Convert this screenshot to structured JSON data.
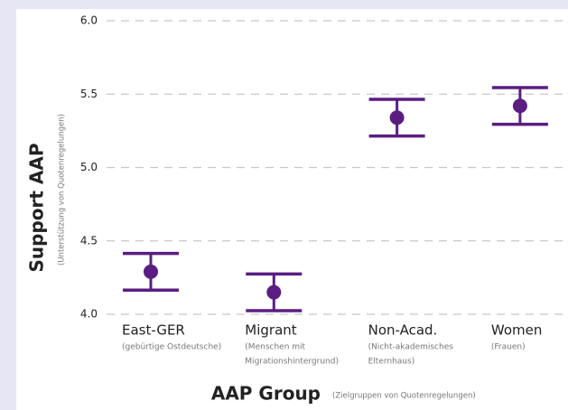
{
  "chart_data": {
    "type": "pointrange",
    "x_label": "AAP Group",
    "x_sublabel": "(Zielgruppen von Quotenregelungen)",
    "y_label": "Support AAP",
    "y_sublabel": "(Unterstützung von Quotenregelungen)",
    "categories": [
      "East-GER",
      "Migrant",
      "Non-Acad.",
      "Women"
    ],
    "category_sublabels": [
      [
        "(gebürtige Ostdeutsche)"
      ],
      [
        "(Menschen mit",
        "Migrationshintergrund)"
      ],
      [
        "(Nicht-akademisches",
        "Elternhaus)"
      ],
      [
        "(Frauen)"
      ]
    ],
    "values": [
      4.29,
      4.15,
      5.34,
      5.42
    ],
    "errors": [
      0.125,
      0.125,
      0.125,
      0.125
    ],
    "color": "#5a1e82",
    "ylim": [
      4.0,
      6.0
    ],
    "yticks": [
      {
        "value": 4,
        "label": "4.0"
      },
      {
        "value": 4.5,
        "label": "4.5"
      },
      {
        "value": 5,
        "label": "5.0"
      },
      {
        "value": 5.5,
        "label": "5.5"
      },
      {
        "value": 6,
        "label": "6.0"
      }
    ],
    "grid": true
  }
}
